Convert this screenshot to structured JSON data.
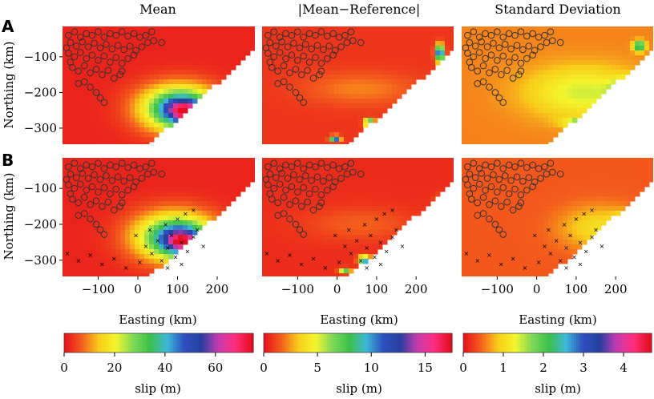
{
  "chart_data": {
    "type": "heatmap",
    "column_titles": [
      "Mean",
      "|Mean−Reference|",
      "Standard Deviation"
    ],
    "row_labels": [
      "A",
      "B"
    ],
    "xlabel": "Easting (km)",
    "ylabel": "Northing (km)",
    "xlim": [
      -190,
      295
    ],
    "ylim": [
      -345,
      -15
    ],
    "xticks": [
      -100,
      0,
      100,
      200
    ],
    "xtick_labels": [
      "−100",
      "0",
      "100",
      "200"
    ],
    "yticks": [
      -100,
      -200,
      -300
    ],
    "ytick_labels": [
      "−100",
      "−200",
      "−300"
    ],
    "colorbars": [
      {
        "label": "slip (m)",
        "range": [
          0,
          75
        ],
        "ticks": [
          0,
          20,
          40,
          60
        ],
        "tick_labels": [
          "0",
          "20",
          "40",
          "60"
        ]
      },
      {
        "label": "slip (m)",
        "range": [
          0,
          17.5
        ],
        "ticks": [
          0,
          5,
          10,
          15
        ],
        "tick_labels": [
          "0",
          "5",
          "10",
          "15"
        ]
      },
      {
        "label": "slip (m)",
        "range": [
          0,
          4.7
        ],
        "ticks": [
          0,
          1,
          2,
          3,
          4
        ],
        "tick_labels": [
          "0",
          "1",
          "2",
          "3",
          "4"
        ]
      }
    ],
    "colormap": [
      "#e8131b",
      "#f4601c",
      "#f8ce1a",
      "#f3f52d",
      "#7ed957",
      "#3bc04a",
      "#3db8d8",
      "#2f4fbf",
      "#263f9e",
      "#c43bb0",
      "#ff2e7e",
      "#e30d1d"
    ],
    "stations": [
      [
        -175,
        -40
      ],
      [
        -160,
        -30
      ],
      [
        -145,
        -45
      ],
      [
        -130,
        -35
      ],
      [
        -115,
        -40
      ],
      [
        -100,
        -30
      ],
      [
        -85,
        -45
      ],
      [
        -70,
        -35
      ],
      [
        -55,
        -40
      ],
      [
        -40,
        -30
      ],
      [
        -25,
        -42
      ],
      [
        -10,
        -35
      ],
      [
        5,
        -45
      ],
      [
        20,
        -40
      ],
      [
        35,
        -30
      ],
      [
        -170,
        -60
      ],
      [
        -155,
        -70
      ],
      [
        -140,
        -58
      ],
      [
        -125,
        -72
      ],
      [
        -110,
        -62
      ],
      [
        -95,
        -75
      ],
      [
        -80,
        -65
      ],
      [
        -65,
        -78
      ],
      [
        -50,
        -68
      ],
      [
        -35,
        -80
      ],
      [
        -20,
        -70
      ],
      [
        -5,
        -82
      ],
      [
        10,
        -72
      ],
      [
        25,
        -60
      ],
      [
        40,
        -55
      ],
      [
        -175,
        -90
      ],
      [
        -160,
        -100
      ],
      [
        -145,
        -88
      ],
      [
        -130,
        -105
      ],
      [
        -115,
        -95
      ],
      [
        -100,
        -110
      ],
      [
        -85,
        -98
      ],
      [
        -70,
        -115
      ],
      [
        -55,
        -102
      ],
      [
        -40,
        -118
      ],
      [
        -25,
        -105
      ],
      [
        -10,
        -95
      ],
      [
        -165,
        -130
      ],
      [
        -150,
        -140
      ],
      [
        -135,
        -125
      ],
      [
        -120,
        -145
      ],
      [
        -105,
        -135
      ],
      [
        -90,
        -150
      ],
      [
        -75,
        -138
      ],
      [
        -60,
        -160
      ],
      [
        -45,
        -150
      ],
      [
        -150,
        -175
      ],
      [
        -135,
        -170
      ],
      [
        -120,
        -185
      ],
      [
        -105,
        -200
      ],
      [
        -95,
        -215
      ],
      [
        -85,
        -228
      ],
      [
        60,
        -60
      ],
      [
        -170,
        -115
      ],
      [
        -180,
        -75
      ],
      [
        -40,
        -140
      ]
    ],
    "crosses": [
      [
        -178,
        -280
      ],
      [
        -150,
        -300
      ],
      [
        -120,
        -285
      ],
      [
        -90,
        -310
      ],
      [
        -60,
        -295
      ],
      [
        -30,
        -320
      ],
      [
        5,
        -305
      ],
      [
        20,
        -260
      ],
      [
        35,
        -280
      ],
      [
        50,
        -245
      ],
      [
        60,
        -300
      ],
      [
        75,
        -265
      ],
      [
        85,
        -230
      ],
      [
        95,
        -290
      ],
      [
        110,
        -250
      ],
      [
        125,
        -275
      ],
      [
        140,
        -235
      ],
      [
        150,
        -215
      ],
      [
        165,
        -260
      ],
      [
        -5,
        -230
      ],
      [
        30,
        -215
      ],
      [
        70,
        -200
      ],
      [
        100,
        -185
      ],
      [
        120,
        -170
      ],
      [
        140,
        -160
      ],
      [
        75,
        -320
      ],
      [
        110,
        -310
      ]
    ],
    "panels": {
      "A": {
        "mean": {
          "background": 0.02,
          "anomalies": [
            {
              "x": 105,
              "y": -245,
              "sx": 95,
              "sy": 62,
              "a": 0.55
            },
            {
              "x": 115,
              "y": -250,
              "sx": 50,
              "sy": 35,
              "a": 0.38
            },
            {
              "x": 120,
              "y": -255,
              "sx": 22,
              "sy": 16,
              "a": 0.22
            }
          ]
        },
        "diff": {
          "background": 0.04,
          "anomalies": [
            {
              "x": -5,
              "y": -330,
              "sx": 12,
              "sy": 8,
              "a": 0.65
            },
            {
              "x": 82,
              "y": -285,
              "sx": 12,
              "sy": 10,
              "a": 0.6
            },
            {
              "x": 260,
              "y": -90,
              "sx": 10,
              "sy": 22,
              "a": 0.75
            },
            {
              "x": 60,
              "y": -190,
              "sx": 140,
              "sy": 45,
              "a": 0.08
            }
          ]
        },
        "std": {
          "background": 0.12,
          "anomalies": [
            {
              "x": 120,
              "y": -200,
              "sx": 140,
              "sy": 70,
              "a": 0.18
            },
            {
              "x": 150,
              "y": -285,
              "sx": 60,
              "sy": 12,
              "a": 0.55
            },
            {
              "x": 260,
              "y": -70,
              "sx": 14,
              "sy": 14,
              "a": 0.45
            },
            {
              "x": 240,
              "y": -200,
              "sx": 40,
              "sy": 30,
              "a": 0.65
            }
          ]
        }
      },
      "B": {
        "mean": {
          "background": 0.02,
          "anomalies": [
            {
              "x": 95,
              "y": -235,
              "sx": 100,
              "sy": 65,
              "a": 0.5
            },
            {
              "x": 110,
              "y": -245,
              "sx": 55,
              "sy": 38,
              "a": 0.4
            },
            {
              "x": 115,
              "y": -250,
              "sx": 25,
              "sy": 16,
              "a": 0.25
            }
          ]
        },
        "diff": {
          "background": 0.03,
          "anomalies": [
            {
              "x": 70,
              "y": -300,
              "sx": 15,
              "sy": 12,
              "a": 0.55
            },
            {
              "x": 20,
              "y": -330,
              "sx": 14,
              "sy": 8,
              "a": 0.4
            },
            {
              "x": 255,
              "y": -160,
              "sx": 10,
              "sy": 25,
              "a": 0.55
            },
            {
              "x": 60,
              "y": -200,
              "sx": 140,
              "sy": 45,
              "a": 0.06
            }
          ]
        },
        "std": {
          "background": 0.08,
          "anomalies": [
            {
              "x": 160,
              "y": -210,
              "sx": 100,
              "sy": 60,
              "a": 0.14
            },
            {
              "x": 230,
              "y": -195,
              "sx": 30,
              "sy": 25,
              "a": 0.28
            },
            {
              "x": 180,
              "y": -285,
              "sx": 30,
              "sy": 15,
              "a": 0.22
            }
          ]
        }
      }
    }
  }
}
